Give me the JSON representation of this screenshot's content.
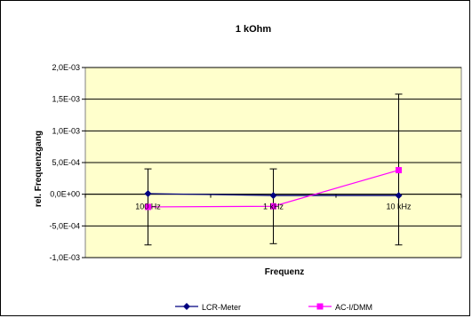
{
  "chart_data": {
    "type": "line",
    "title": "1 kOhm",
    "xlabel": "Frequenz",
    "ylabel": "rel. Frequenzgang",
    "categories": [
      "100 Hz",
      "1 kHz",
      "10 kHz"
    ],
    "ylim": [
      -0.001,
      0.002
    ],
    "yticks": [
      0.002,
      0.0015,
      0.001,
      0.0005,
      0.0,
      -0.0005,
      -0.001
    ],
    "ytick_labels": [
      "2,0E-03",
      "1,5E-03",
      "1,0E-03",
      "5,0E-04",
      "0,0E+00",
      "-5,0E-04",
      "-1,0E-03"
    ],
    "grid": true,
    "legend_position": "bottom",
    "plot_background": "#ffffcc",
    "series": [
      {
        "name": "LCR-Meter",
        "color": "#000080",
        "marker": "diamond",
        "values": [
          1e-05,
          -2e-05,
          -2e-05
        ],
        "error_low": [
          -0.0008,
          -0.00078,
          -0.0008
        ],
        "error_high": [
          0.0004,
          0.0004,
          0.00158
        ]
      },
      {
        "name": "AC-I/DMM",
        "color": "#ff00ff",
        "marker": "square",
        "values": [
          -0.0002,
          -0.00019,
          0.00038
        ]
      }
    ]
  }
}
